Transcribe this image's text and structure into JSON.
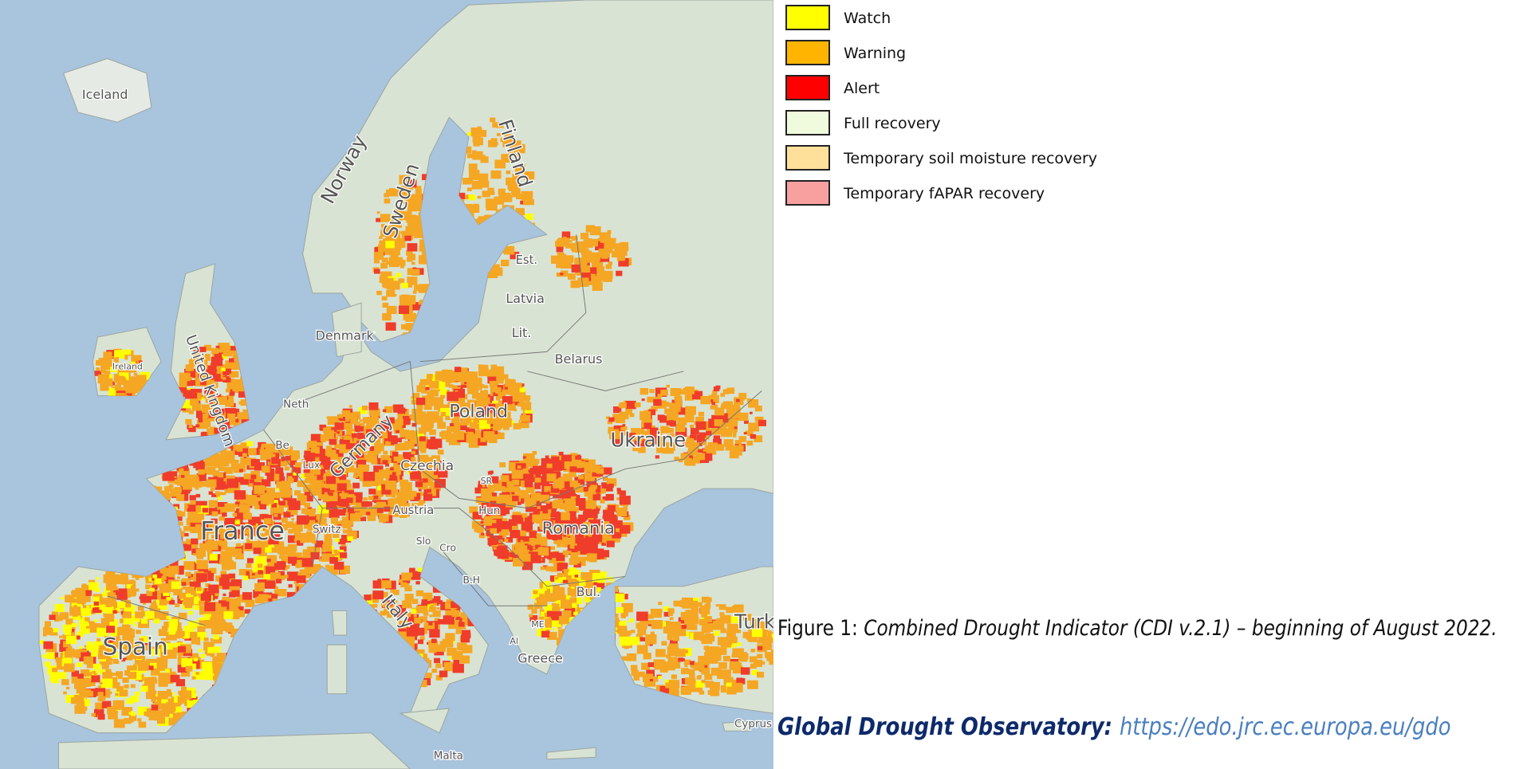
{
  "legend": {
    "items": [
      {
        "label": "Watch",
        "color": "#ffff00"
      },
      {
        "label": "Warning",
        "color": "#ffb400"
      },
      {
        "label": "Alert",
        "color": "#ff0000"
      },
      {
        "label": "Full recovery",
        "color": "#f0fadc"
      },
      {
        "label": "Temporary soil moisture recovery",
        "color": "#ffe09a"
      },
      {
        "label": "Temporary fAPAR recovery",
        "color": "#f8a0a0"
      }
    ]
  },
  "caption": {
    "prefix": "Figure 1: ",
    "text": "Combined Drought Indicator (CDI v.2.1) – beginning of August 2022."
  },
  "source": {
    "label": "Global Drought Observatory: ",
    "url": "https://edo.jrc.ec.europa.eu/gdo"
  },
  "map": {
    "colors": {
      "sea": "#a9c4dd",
      "land": "#d9e3d3",
      "border": "#8a8a8a"
    },
    "labels": {
      "iceland": "Iceland",
      "norway": "Norway",
      "sweden": "Sweden",
      "finland": "Finland",
      "estonia": "Est.",
      "latvia": "Latvia",
      "lithuania": "Lit.",
      "denmark": "Denmark",
      "ireland": "Ireland",
      "uk": "United Kingdom",
      "belarus": "Belarus",
      "poland": "Poland",
      "ukraine": "Ukraine",
      "germany": "Germany",
      "czechia": "Czechia",
      "netherlands": "Neth",
      "belgium": "Be",
      "luxembourg": "Lux",
      "france": "France",
      "switzerland": "Switz",
      "austria": "Austria",
      "hungary": "Hun",
      "romania": "Romania",
      "slovenia": "Slo",
      "croatia": "Cro",
      "bosnia": "B.H",
      "bulgaria": "Bul.",
      "spain": "Spain",
      "italy": "Italy",
      "greece": "Greece",
      "albania": "Al",
      "montenegro": "ME",
      "turkey": "Turk",
      "cyprus": "Cyprus",
      "malta": "Malta",
      "slovakia": "SR"
    }
  }
}
